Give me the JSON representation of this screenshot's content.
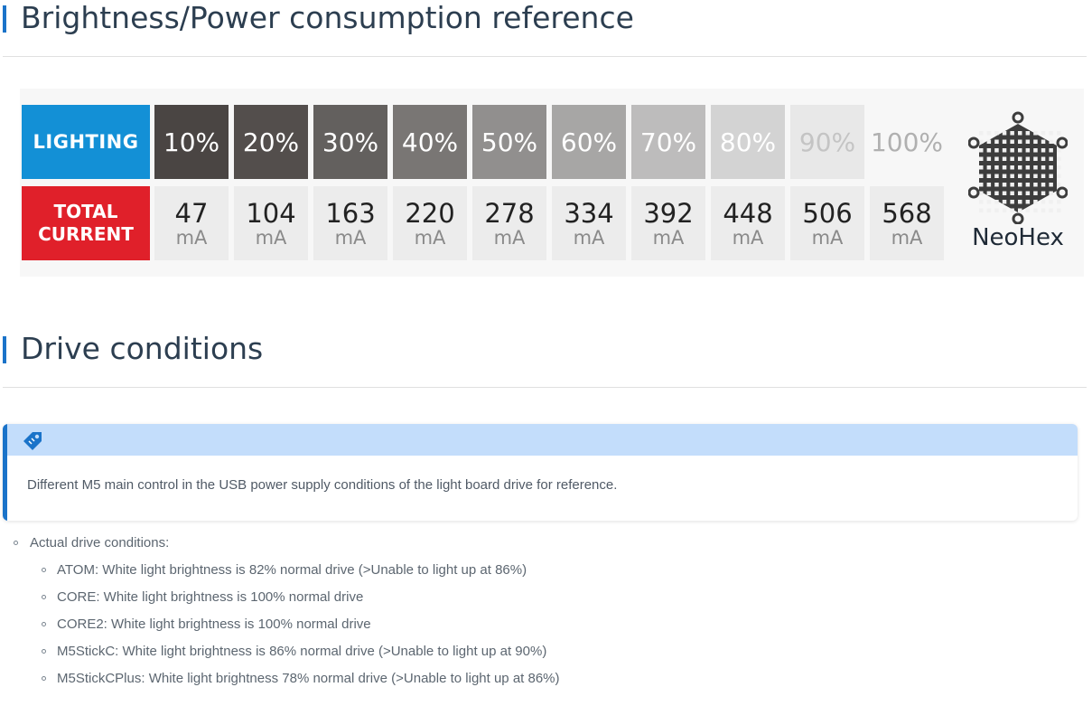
{
  "headings": {
    "brightness": "Brightness/Power consumption reference",
    "drive": "Drive conditions"
  },
  "table": {
    "lighting_label": "LIGHTING",
    "current_label_line1": "TOTAL",
    "current_label_line2": "CURRENT",
    "unit": "mA",
    "brightness": [
      "10%",
      "20%",
      "30%",
      "40%",
      "50%",
      "60%",
      "70%",
      "80%",
      "90%",
      "100%"
    ],
    "current": [
      "47",
      "104",
      "163",
      "220",
      "278",
      "334",
      "392",
      "448",
      "506",
      "568"
    ],
    "cell_colors": [
      "#4a4543",
      "#534e4c",
      "#63605e",
      "#797674",
      "#918f8e",
      "#a7a6a5",
      "#bdbcbc",
      "#d3d3d3",
      "#e8e8e8",
      "#f7f7f7"
    ],
    "pct_text_colors": [
      "#ffffff",
      "#ffffff",
      "#ffffff",
      "#ffffff",
      "#ffffff",
      "#ffffff",
      "#ffffff",
      "#ffffff",
      "#c4c4c4",
      "#b0b0b0"
    ]
  },
  "logo": {
    "name": "NeoHex",
    "icon": "hexagon-led-matrix-icon"
  },
  "tip": {
    "icon": "tag-icon",
    "text": "Different M5 main control in the USB power supply conditions of the light board drive for reference."
  },
  "list": {
    "title": "Actual drive conditions:",
    "items": [
      "ATOM: White light brightness is 82% normal drive  (>Unable to light up at 86%)",
      "CORE: White light brightness is 100% normal drive",
      "CORE2: White light brightness is 100% normal drive",
      "M5StickC: White light brightness is 86% normal drive  (>Unable to light up at 90%)",
      "M5StickCPlus: White light brightness 78% normal drive  (>Unable to light up at 86%)"
    ]
  },
  "colors": {
    "accent": "#1a73c9",
    "lighting_blue": "#1390d6",
    "current_red": "#e0202a",
    "tip_header": "#c3ddfb"
  }
}
